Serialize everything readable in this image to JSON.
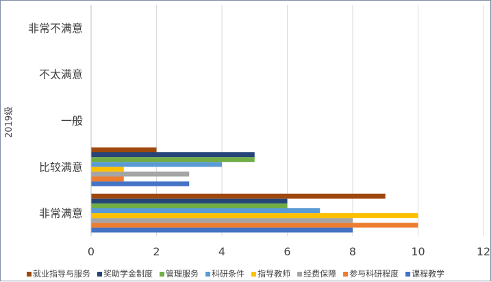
{
  "chart_data": {
    "type": "bar",
    "orientation": "horizontal",
    "ylabel": "2019级",
    "categories": [
      "非常满意",
      "比较满意",
      "一般",
      "不太满意",
      "非常不满意"
    ],
    "xlim": [
      0,
      12
    ],
    "xticks": [
      0,
      2,
      4,
      6,
      8,
      10,
      12
    ],
    "grid": true,
    "legend_position": "bottom",
    "series": [
      {
        "name": "课程教学",
        "color": "#4472C4",
        "values": [
          8,
          3,
          0,
          0,
          0
        ]
      },
      {
        "name": "参与科研程度",
        "color": "#ED7D31",
        "values": [
          10,
          1,
          0,
          0,
          0
        ]
      },
      {
        "name": "经费保障",
        "color": "#A5A5A5",
        "values": [
          8,
          3,
          0,
          0,
          0
        ]
      },
      {
        "name": "指导教师",
        "color": "#FFC000",
        "values": [
          10,
          1,
          0,
          0,
          0
        ]
      },
      {
        "name": "科研条件",
        "color": "#5B9BD5",
        "values": [
          7,
          4,
          0,
          0,
          0
        ]
      },
      {
        "name": "管理服务",
        "color": "#70AD47",
        "values": [
          6,
          5,
          0,
          0,
          0
        ]
      },
      {
        "name": "奖助学金制度",
        "color": "#264478",
        "values": [
          6,
          5,
          0,
          0,
          0
        ]
      },
      {
        "name": "就业指导与服务",
        "color": "#9E480E",
        "values": [
          9,
          2,
          0,
          0,
          0
        ]
      }
    ],
    "legend_order": [
      "就业指导与服务",
      "奖助学金制度",
      "管理服务",
      "科研条件",
      "指导教师",
      "经费保障",
      "参与科研程度",
      "课程教学"
    ]
  }
}
